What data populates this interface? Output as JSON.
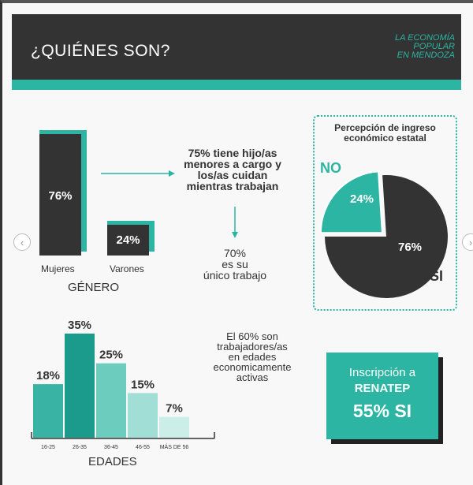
{
  "header": {
    "title": "¿QUIÉNES SON?",
    "subtitle_lines": [
      "LA ECONOMÍA",
      "POPULAR",
      "EN MENDOZA"
    ]
  },
  "nav": {
    "prev_icon": "‹",
    "next_icon": "›"
  },
  "genero": {
    "title": "GÉNERO",
    "chart_data": {
      "type": "bar",
      "categories": [
        "Mujeres",
        "Varones"
      ],
      "values": [
        76,
        24
      ],
      "value_labels": [
        "76%",
        "24%"
      ],
      "ylim": [
        0,
        100
      ]
    }
  },
  "hijos": {
    "lines": [
      "75% tiene hijo/as",
      "menores a cargo y",
      "los/as cuidan",
      "mientras trabajan"
    ]
  },
  "unico": {
    "lines": [
      "70%",
      "es su",
      "único trabajo"
    ]
  },
  "percepcion": {
    "title_lines": [
      "Percepción de ingreso",
      "económico estatal"
    ],
    "chart_data": {
      "type": "pie",
      "categories": [
        "NO",
        "SI"
      ],
      "values": [
        24,
        76
      ],
      "value_labels": [
        "24%",
        "76%"
      ],
      "colors": [
        "#2bb5a2",
        "#333333"
      ]
    }
  },
  "edades": {
    "title": "EDADES",
    "chart_data": {
      "type": "bar",
      "categories": [
        "16-25",
        "26-35",
        "36-45",
        "46-55",
        "MÁS DE 56"
      ],
      "values": [
        18,
        35,
        25,
        15,
        7
      ],
      "value_labels": [
        "18%",
        "35%",
        "25%",
        "15%",
        "7%"
      ],
      "colors": [
        "#39b3a3",
        "#1a9b8b",
        "#6ccdbf",
        "#a1ded5",
        "#cbeee9"
      ],
      "ylim": [
        0,
        35
      ]
    }
  },
  "activas": {
    "lines": [
      "El 60% son",
      "trabajadores/as",
      "en edades",
      "economicamente",
      "activas"
    ]
  },
  "renatep": {
    "line1": "Inscripción a",
    "line2": "RENATEP",
    "line3": "55% SI"
  },
  "colors": {
    "dark": "#333333",
    "teal": "#2bb5a2"
  }
}
